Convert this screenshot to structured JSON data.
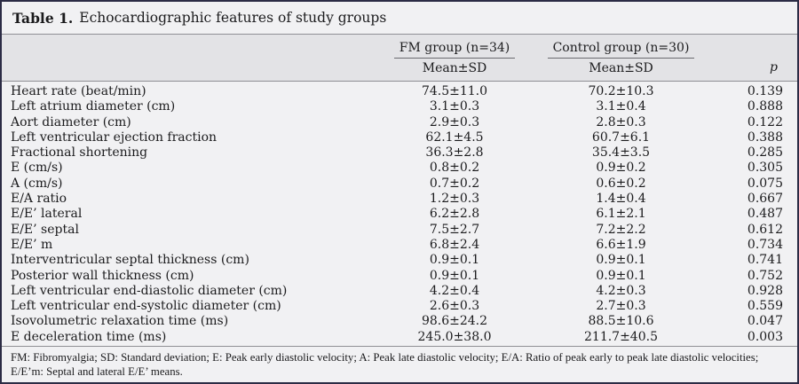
{
  "title": {
    "bold": "Table 1.",
    "text": "Echocardiographic features of study groups"
  },
  "table": {
    "col_groups": [
      {
        "label": "FM group (n=34)",
        "sub": "Mean±SD"
      },
      {
        "label": "Control group (n=30)",
        "sub": "Mean±SD"
      }
    ],
    "p_label": "p",
    "rows": [
      {
        "label": "Heart rate (beat/min)",
        "fm": "74.5±11.0",
        "control": "70.2±10.3",
        "p": "0.139"
      },
      {
        "label": "Left atrium diameter (cm)",
        "fm": "3.1±0.3",
        "control": "3.1±0.4",
        "p": "0.888"
      },
      {
        "label": "Aort diameter (cm)",
        "fm": "2.9±0.3",
        "control": "2.8±0.3",
        "p": "0.122"
      },
      {
        "label": "Left ventricular ejection fraction",
        "fm": "62.1±4.5",
        "control": "60.7±6.1",
        "p": "0.388"
      },
      {
        "label": "Fractional shortening",
        "fm": "36.3±2.8",
        "control": "35.4±3.5",
        "p": "0.285"
      },
      {
        "label": "E (cm/s)",
        "fm": "0.8±0.2",
        "control": "0.9±0.2",
        "p": "0.305"
      },
      {
        "label": "A (cm/s)",
        "fm": "0.7±0.2",
        "control": "0.6±0.2",
        "p": "0.075"
      },
      {
        "label": "E/A ratio",
        "fm": "1.2±0.3",
        "control": "1.4±0.4",
        "p": "0.667"
      },
      {
        "label": "E/E’ lateral",
        "fm": "6.2±2.8",
        "control": "6.1±2.1",
        "p": "0.487"
      },
      {
        "label": "E/E’ septal",
        "fm": "7.5±2.7",
        "control": "7.2±2.2",
        "p": "0.612"
      },
      {
        "label": "E/E’ m",
        "fm": "6.8±2.4",
        "control": "6.6±1.9",
        "p": "0.734"
      },
      {
        "label": "Interventricular septal thickness (cm)",
        "fm": "0.9±0.1",
        "control": "0.9±0.1",
        "p": "0.741"
      },
      {
        "label": "Posterior wall thickness (cm)",
        "fm": "0.9±0.1",
        "control": "0.9±0.1",
        "p": "0.752"
      },
      {
        "label": "Left ventricular end-diastolic diameter (cm)",
        "fm": "4.2±0.4",
        "control": "4.2±0.3",
        "p": "0.928"
      },
      {
        "label": "Left ventricular end-systolic diameter (cm)",
        "fm": "2.6±0.3",
        "control": "2.7±0.3",
        "p": "0.559"
      },
      {
        "label": "Isovolumetric relaxation time (ms)",
        "fm": "98.6±24.2",
        "control": "88.5±10.6",
        "p": "0.047"
      },
      {
        "label": "E deceleration time (ms)",
        "fm": "245.0±38.0",
        "control": "211.7±40.5",
        "p": "0.003"
      }
    ]
  },
  "footnote": {
    "line1": "FM: Fibromyalgia; SD: Standard deviation; E: Peak early diastolic velocity; A: Peak late diastolic velocity; E/A: Ratio of peak early to peak late diastolic velocities;",
    "line2": "E/E’m: Septal and lateral E/E’ means."
  },
  "colors": {
    "card_background": "#f1f1f3",
    "header_band_background": "#e3e3e6",
    "rule": "#8f8f94",
    "outer_border": "#2c2c45",
    "text": "#1b1b1d"
  }
}
